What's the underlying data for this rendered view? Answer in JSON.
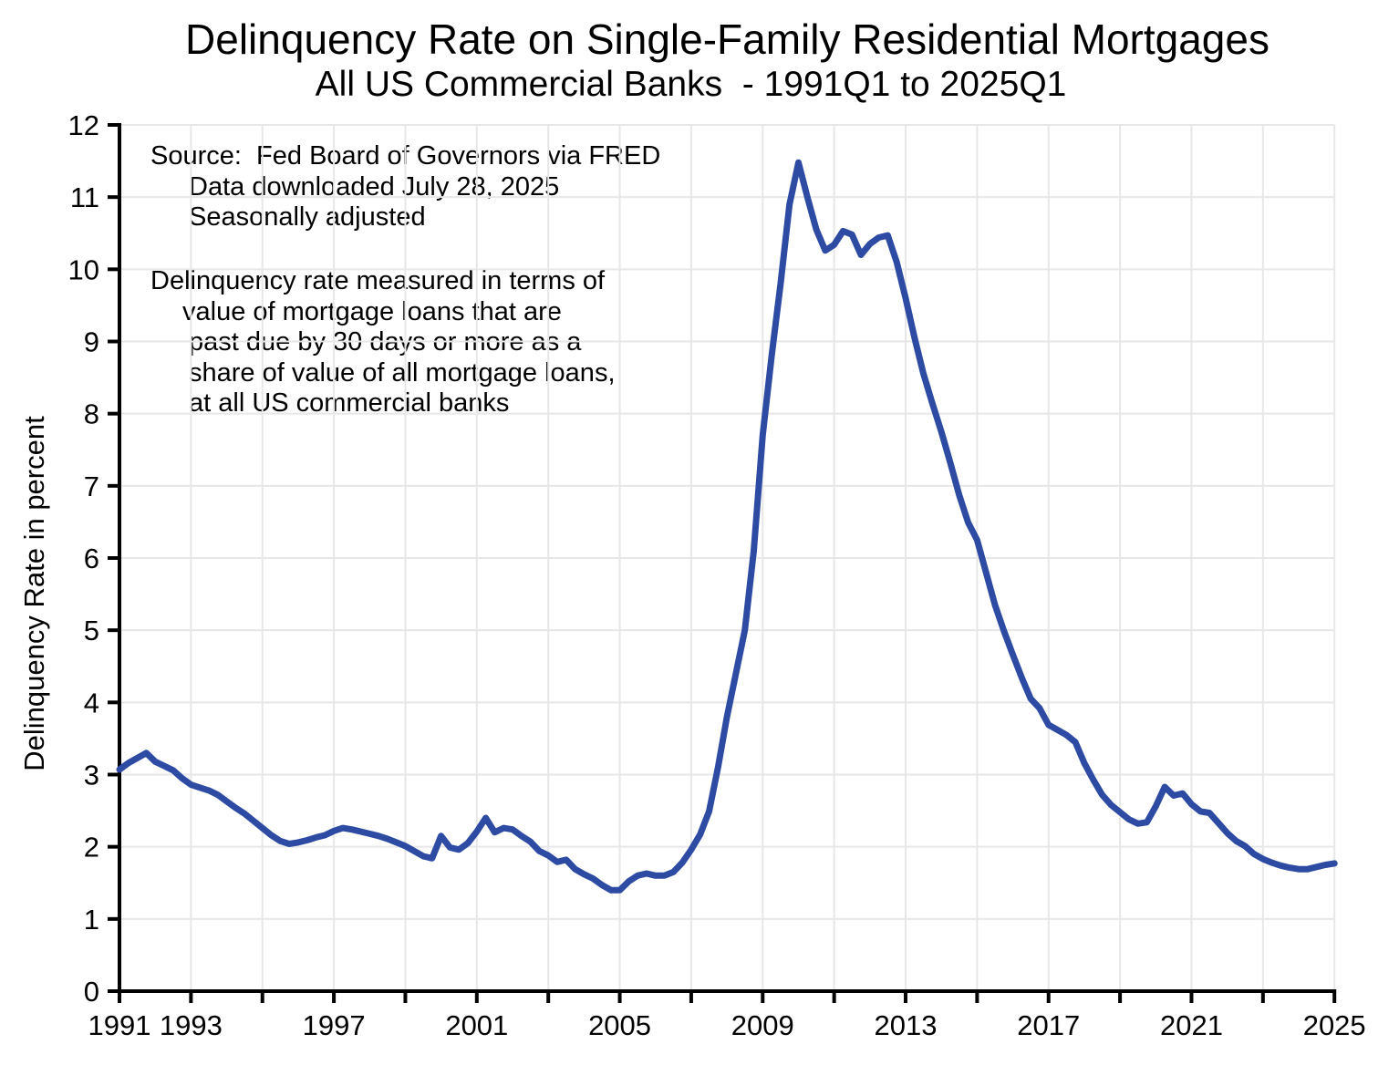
{
  "header": {
    "title": "Delinquency Rate on Single-Family Residential Mortgages",
    "subtitle": "All US Commercial Banks  - 1991Q1 to 2025Q1"
  },
  "annotations": {
    "source_lines": [
      "Source:  Fed Board of Governors via FRED",
      "Data downloaded July 28, 2025",
      "Seasonally adjusted"
    ],
    "description_lines": [
      "Delinquency rate measured in terms of",
      "value of mortgage loans that are",
      "past due by 30 days or more as a",
      "share of value of all mortgage loans,",
      "at all US commercial banks"
    ]
  },
  "axes": {
    "y_label": "Delinquency Rate in percent",
    "y_tick_values": [
      0,
      1,
      2,
      3,
      4,
      5,
      6,
      7,
      8,
      9,
      10,
      11,
      12
    ],
    "x_tick_years": [
      1991,
      1993,
      1995,
      1997,
      1999,
      2001,
      2003,
      2005,
      2007,
      2009,
      2011,
      2013,
      2015,
      2017,
      2019,
      2021,
      2023,
      2025
    ],
    "x_labeled_years": [
      1991,
      1993,
      1997,
      2001,
      2005,
      2009,
      2013,
      2017,
      2021,
      2025
    ]
  },
  "colors": {
    "line": "#2d4ba3",
    "grid": "#e7e7e7",
    "axis": "#000000",
    "text": "#000000",
    "background": "#ffffff"
  },
  "chart_data": {
    "type": "line",
    "title": "Delinquency Rate on Single-Family Residential Mortgages",
    "subtitle": "All US Commercial Banks  - 1991Q1 to 2025Q1",
    "series_name": "Delinquency rate, single-family residential mortgages",
    "unit": "percent",
    "frequency": "quarterly",
    "start": "1991Q1",
    "end": "2025Q1",
    "xlabel": "",
    "ylabel": "Delinquency Rate in percent",
    "xlim": [
      1991,
      2025
    ],
    "ylim": [
      0,
      12
    ],
    "grid": true,
    "legend": "none",
    "values": [
      3.07,
      3.16,
      3.23,
      3.3,
      3.18,
      3.12,
      3.06,
      2.95,
      2.86,
      2.82,
      2.78,
      2.72,
      2.63,
      2.54,
      2.46,
      2.36,
      2.26,
      2.16,
      2.08,
      2.04,
      2.06,
      2.09,
      2.13,
      2.16,
      2.22,
      2.26,
      2.24,
      2.21,
      2.18,
      2.15,
      2.11,
      2.06,
      2.01,
      1.94,
      1.87,
      1.84,
      2.15,
      1.99,
      1.96,
      2.05,
      2.21,
      2.4,
      2.2,
      2.26,
      2.24,
      2.15,
      2.07,
      1.94,
      1.88,
      1.79,
      1.82,
      1.69,
      1.62,
      1.56,
      1.47,
      1.4,
      1.4,
      1.52,
      1.6,
      1.63,
      1.6,
      1.6,
      1.65,
      1.78,
      1.96,
      2.17,
      2.49,
      3.1,
      3.8,
      4.4,
      5.0,
      6.1,
      7.7,
      8.8,
      9.8,
      10.9,
      11.48,
      11.0,
      10.55,
      10.26,
      10.34,
      10.53,
      10.48,
      10.2,
      10.35,
      10.44,
      10.47,
      10.1,
      9.6,
      9.05,
      8.55,
      8.14,
      7.75,
      7.32,
      6.87,
      6.49,
      6.25,
      5.8,
      5.35,
      4.99,
      4.66,
      4.34,
      4.05,
      3.92,
      3.69,
      3.62,
      3.55,
      3.45,
      3.16,
      2.93,
      2.72,
      2.58,
      2.48,
      2.38,
      2.32,
      2.34,
      2.56,
      2.83,
      2.71,
      2.74,
      2.59,
      2.49,
      2.47,
      2.33,
      2.19,
      2.08,
      2.01,
      1.9,
      1.83,
      1.78,
      1.74,
      1.71,
      1.69,
      1.69,
      1.72,
      1.75,
      1.77
    ]
  }
}
